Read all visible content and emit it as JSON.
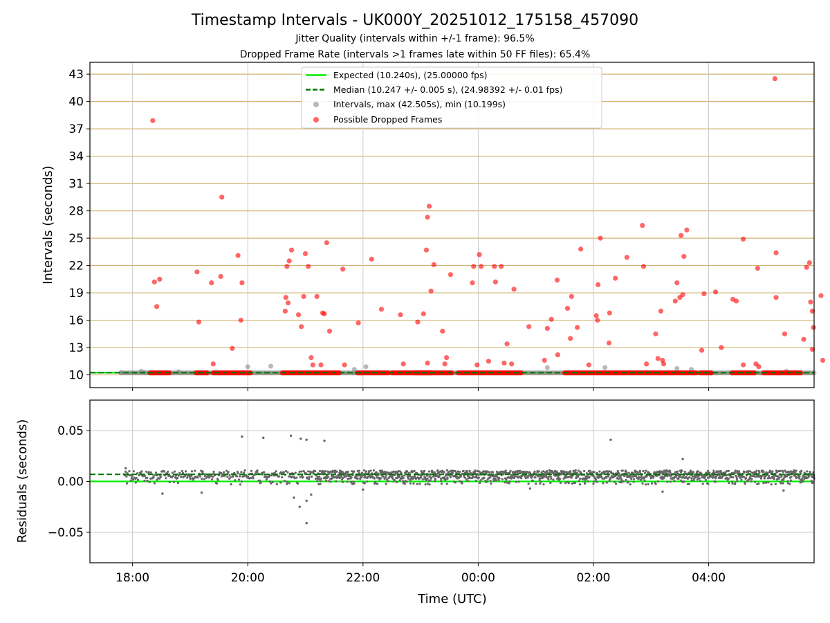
{
  "chart_data": {
    "type": "scatter",
    "title": "Timestamp Intervals - UK000Y_20251012_175158_457090",
    "subtitle_lines": [
      "Jitter Quality (intervals within +/-1 frame): 96.5%",
      "Dropped Frame Rate (intervals >1 frames late within 50 FF files): 65.4%"
    ],
    "xlabel": "Time (UTC)",
    "x_unit": "hours since 18:00 UTC",
    "xlim": [
      -0.74,
      11.83
    ],
    "x_tick_values": [
      0,
      2,
      4,
      6,
      8,
      10
    ],
    "x_tick_labels": [
      "18:00",
      "20:00",
      "22:00",
      "00:00",
      "02:00",
      "04:00"
    ],
    "top_panel": {
      "ylabel": "Intervals (seconds)",
      "ylim": [
        8.6,
        44.3
      ],
      "y_ticks": [
        10,
        13,
        16,
        19,
        22,
        25,
        28,
        31,
        34,
        37,
        40,
        43
      ],
      "expected_interval": 10.24,
      "median_interval": 10.247,
      "legend": [
        "Expected (10.240s), (25.00000 fps)",
        "Median (10.247 +/- 0.005 s), (24.98392 +/- 0.01 fps)",
        "Intervals, max (42.505s), min (10.199s)",
        "Possible Dropped Frames"
      ],
      "baseline_segments": [
        [
          -0.2,
          11.83
        ]
      ],
      "dropped_baseline_segments": [
        [
          0.3,
          0.65
        ],
        [
          1.1,
          1.3
        ],
        [
          1.4,
          2.05
        ],
        [
          2.6,
          3.6
        ],
        [
          3.9,
          4.45
        ],
        [
          4.5,
          5.55
        ],
        [
          4.9,
          5.2
        ],
        [
          5.65,
          6.75
        ],
        [
          7.5,
          9.8
        ],
        [
          9.85,
          10.05
        ],
        [
          10.4,
          10.8
        ],
        [
          10.95,
          11.6
        ]
      ],
      "gray_points": [
        [
          -0.2,
          10.25
        ],
        [
          0.15,
          10.4
        ],
        [
          0.2,
          10.3
        ],
        [
          0.8,
          10.35
        ],
        [
          2.0,
          10.9
        ],
        [
          2.4,
          10.95
        ],
        [
          3.85,
          10.6
        ],
        [
          4.05,
          10.9
        ],
        [
          7.2,
          10.8
        ],
        [
          8.2,
          10.8
        ],
        [
          9.45,
          10.7
        ],
        [
          9.7,
          10.6
        ],
        [
          11.35,
          10.4
        ]
      ],
      "dropped_points": [
        [
          0.35,
          37.9
        ],
        [
          0.38,
          20.2
        ],
        [
          0.42,
          17.5
        ],
        [
          0.47,
          20.5
        ],
        [
          1.12,
          21.3
        ],
        [
          1.15,
          15.8
        ],
        [
          1.37,
          20.1
        ],
        [
          1.4,
          11.2
        ],
        [
          1.53,
          20.8
        ],
        [
          1.55,
          29.5
        ],
        [
          1.73,
          12.9
        ],
        [
          1.83,
          23.1
        ],
        [
          1.88,
          16.0
        ],
        [
          1.9,
          20.1
        ],
        [
          2.65,
          17.0
        ],
        [
          2.66,
          18.5
        ],
        [
          2.68,
          21.9
        ],
        [
          2.7,
          17.9
        ],
        [
          2.72,
          22.5
        ],
        [
          2.76,
          23.7
        ],
        [
          2.88,
          16.6
        ],
        [
          2.93,
          15.3
        ],
        [
          2.97,
          18.6
        ],
        [
          3.0,
          23.3
        ],
        [
          3.05,
          21.9
        ],
        [
          3.1,
          11.9
        ],
        [
          3.13,
          11.1
        ],
        [
          3.2,
          18.6
        ],
        [
          3.27,
          11.1
        ],
        [
          3.3,
          16.8
        ],
        [
          3.33,
          16.7
        ],
        [
          3.37,
          24.5
        ],
        [
          3.42,
          14.8
        ],
        [
          3.65,
          21.6
        ],
        [
          3.68,
          11.1
        ],
        [
          3.92,
          15.7
        ],
        [
          4.15,
          22.7
        ],
        [
          4.32,
          17.2
        ],
        [
          4.65,
          16.6
        ],
        [
          4.7,
          11.2
        ],
        [
          4.95,
          15.8
        ],
        [
          5.05,
          16.7
        ],
        [
          5.1,
          23.7
        ],
        [
          5.12,
          11.3
        ],
        [
          5.12,
          27.3
        ],
        [
          5.15,
          28.5
        ],
        [
          5.18,
          19.2
        ],
        [
          5.23,
          22.1
        ],
        [
          5.38,
          14.8
        ],
        [
          5.42,
          11.2
        ],
        [
          5.45,
          11.9
        ],
        [
          5.52,
          21.0
        ],
        [
          5.9,
          20.1
        ],
        [
          5.92,
          21.9
        ],
        [
          5.98,
          11.1
        ],
        [
          6.02,
          23.2
        ],
        [
          6.05,
          21.9
        ],
        [
          6.18,
          11.5
        ],
        [
          6.28,
          21.9
        ],
        [
          6.3,
          20.2
        ],
        [
          6.4,
          21.9
        ],
        [
          6.45,
          11.3
        ],
        [
          6.5,
          13.4
        ],
        [
          6.58,
          11.2
        ],
        [
          6.62,
          19.4
        ],
        [
          6.88,
          15.3
        ],
        [
          7.15,
          11.6
        ],
        [
          7.2,
          15.1
        ],
        [
          7.27,
          16.1
        ],
        [
          7.37,
          20.4
        ],
        [
          7.38,
          12.2
        ],
        [
          7.55,
          17.3
        ],
        [
          7.6,
          14.0
        ],
        [
          7.62,
          18.6
        ],
        [
          7.72,
          15.2
        ],
        [
          7.78,
          23.8
        ],
        [
          7.92,
          11.1
        ],
        [
          8.05,
          16.5
        ],
        [
          8.07,
          16.0
        ],
        [
          8.08,
          19.9
        ],
        [
          8.12,
          25.0
        ],
        [
          8.27,
          13.5
        ],
        [
          8.28,
          16.8
        ],
        [
          8.38,
          20.6
        ],
        [
          8.58,
          22.9
        ],
        [
          8.85,
          26.4
        ],
        [
          8.87,
          21.9
        ],
        [
          8.92,
          11.2
        ],
        [
          9.08,
          14.5
        ],
        [
          9.12,
          11.8
        ],
        [
          9.17,
          17.0
        ],
        [
          9.2,
          11.6
        ],
        [
          9.22,
          11.2
        ],
        [
          9.42,
          18.1
        ],
        [
          9.45,
          20.1
        ],
        [
          9.5,
          18.5
        ],
        [
          9.52,
          25.3
        ],
        [
          9.55,
          18.8
        ],
        [
          9.57,
          23.0
        ],
        [
          9.62,
          25.9
        ],
        [
          9.88,
          12.7
        ],
        [
          9.92,
          18.9
        ],
        [
          10.12,
          19.1
        ],
        [
          10.22,
          13.0
        ],
        [
          10.42,
          18.3
        ],
        [
          10.48,
          18.1
        ],
        [
          10.6,
          24.9
        ],
        [
          10.6,
          11.1
        ],
        [
          10.82,
          11.2
        ],
        [
          10.85,
          21.7
        ],
        [
          10.87,
          10.9
        ],
        [
          11.15,
          42.5
        ],
        [
          11.17,
          23.4
        ],
        [
          11.17,
          18.5
        ],
        [
          11.32,
          14.5
        ],
        [
          11.65,
          13.9
        ],
        [
          11.7,
          21.8
        ],
        [
          11.75,
          22.3
        ],
        [
          11.77,
          18.0
        ],
        [
          11.8,
          17.0
        ],
        [
          11.82,
          15.2
        ],
        [
          11.8,
          12.8
        ],
        [
          11.95,
          18.7
        ],
        [
          11.98,
          11.6
        ]
      ]
    },
    "bottom_panel": {
      "ylabel": "Residuals (seconds)",
      "ylim": [
        -0.08,
        0.08
      ],
      "y_ticks": [
        0.05,
        0.0,
        -0.05
      ],
      "y_tick_labels": [
        "0.05",
        "0.00",
        "−0.05"
      ],
      "expected_residual": 0.0,
      "median_residual": 0.007,
      "residual_band": [
        -0.003,
        0.011
      ],
      "outlier_points": [
        [
          -0.12,
          0.013
        ],
        [
          1.9,
          0.044
        ],
        [
          2.27,
          0.043
        ],
        [
          2.75,
          0.045
        ],
        [
          2.92,
          0.042
        ],
        [
          3.02,
          0.041
        ],
        [
          3.33,
          0.04
        ],
        [
          3.02,
          -0.041
        ],
        [
          8.3,
          0.041
        ],
        [
          9.55,
          0.022
        ],
        [
          0.52,
          -0.012
        ],
        [
          1.2,
          -0.011
        ],
        [
          2.8,
          -0.016
        ],
        [
          3.02,
          -0.019
        ],
        [
          2.9,
          -0.025
        ],
        [
          3.1,
          -0.013
        ],
        [
          4.0,
          -0.008
        ],
        [
          6.9,
          -0.007
        ],
        [
          9.2,
          -0.01
        ],
        [
          11.3,
          -0.009
        ]
      ]
    },
    "colors": {
      "expected_line": "#00ee00",
      "median_line": "#007700",
      "intervals": "#888888",
      "dropped_frames": "#ff0000",
      "residuals": "#666666",
      "hgrid": "#d2b373",
      "vgrid": "#c8c8c8",
      "axes": "#000000"
    }
  }
}
